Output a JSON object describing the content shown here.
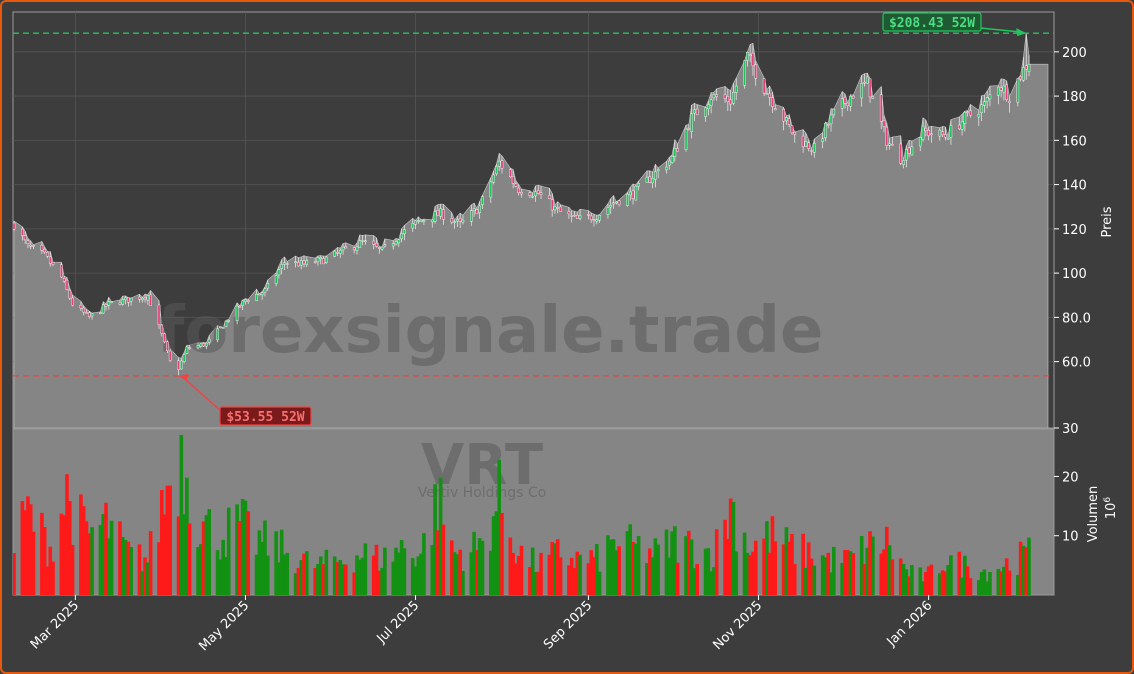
{
  "chart_data": {
    "type": "candlestick",
    "ticker": "VRT",
    "company": "Vertiv Holdings Co",
    "watermark": "forexsignale.trade",
    "ylabel_price": "Preis",
    "ylabel_volume": "Volumen",
    "volume_unit": "10",
    "volume_unit_exp": "6",
    "price_ylim": [
      30,
      218
    ],
    "price_yticks": [
      30,
      60,
      80,
      100,
      120,
      140,
      160,
      180,
      200
    ],
    "price_ytick_labels": [
      "30",
      "60.0",
      "80.0",
      "100",
      "120",
      "140",
      "160",
      "180",
      "200"
    ],
    "volume_ylim": [
      0,
      28
    ],
    "volume_yticks": [
      10,
      20
    ],
    "volume_ytick_labels": [
      "10",
      "20"
    ],
    "date_range": [
      "2025-02-07",
      "2026-02-06"
    ],
    "xtick_dates": [
      "2025-03-01",
      "2025-05-01",
      "2025-07-01",
      "2025-09-01",
      "2025-11-01",
      "2026-01-01"
    ],
    "xtick_labels": [
      "Mar 2025",
      "May 2025",
      "Jul 2025",
      "Sep 2025",
      "Nov 2025",
      "Jan 2026"
    ],
    "high_52w": {
      "value": 208.43,
      "label": "$208.43 52W",
      "date": "2026-02-05"
    },
    "low_52w": {
      "value": 53.55,
      "label": "$53.55 52W",
      "date": "2025-04-07"
    },
    "close_anchors": [
      [
        "2025-02-07",
        122
      ],
      [
        "2025-02-12",
        112
      ],
      [
        "2025-02-18",
        108
      ],
      [
        "2025-02-24",
        98
      ],
      [
        "2025-02-28",
        86
      ],
      [
        "2025-03-06",
        80
      ],
      [
        "2025-03-13",
        86
      ],
      [
        "2025-03-20",
        88
      ],
      [
        "2025-03-27",
        90
      ],
      [
        "2025-04-01",
        72
      ],
      [
        "2025-04-04",
        60
      ],
      [
        "2025-04-07",
        57
      ],
      [
        "2025-04-10",
        66
      ],
      [
        "2025-04-17",
        68
      ],
      [
        "2025-04-24",
        78
      ],
      [
        "2025-05-01",
        88
      ],
      [
        "2025-05-08",
        92
      ],
      [
        "2025-05-15",
        105
      ],
      [
        "2025-05-22",
        104
      ],
      [
        "2025-05-29",
        106
      ],
      [
        "2025-06-05",
        110
      ],
      [
        "2025-06-12",
        114
      ],
      [
        "2025-06-19",
        110
      ],
      [
        "2025-06-26",
        118
      ],
      [
        "2025-07-03",
        124
      ],
      [
        "2025-07-10",
        127
      ],
      [
        "2025-07-17",
        122
      ],
      [
        "2025-07-24",
        130
      ],
      [
        "2025-07-31",
        150
      ],
      [
        "2025-08-07",
        138
      ],
      [
        "2025-08-14",
        136
      ],
      [
        "2025-08-21",
        128
      ],
      [
        "2025-08-28",
        124
      ],
      [
        "2025-09-04",
        126
      ],
      [
        "2025-09-10",
        132
      ],
      [
        "2025-09-17",
        136
      ],
      [
        "2025-09-24",
        144
      ],
      [
        "2025-10-01",
        152
      ],
      [
        "2025-10-08",
        170
      ],
      [
        "2025-10-15",
        180
      ],
      [
        "2025-10-22",
        178
      ],
      [
        "2025-10-28",
        198
      ],
      [
        "2025-11-03",
        184
      ],
      [
        "2025-11-07",
        176
      ],
      [
        "2025-11-14",
        162
      ],
      [
        "2025-11-21",
        156
      ],
      [
        "2025-11-28",
        172
      ],
      [
        "2025-12-04",
        180
      ],
      [
        "2025-12-10",
        186
      ],
      [
        "2025-12-17",
        160
      ],
      [
        "2025-12-22",
        152
      ],
      [
        "2025-12-30",
        164
      ],
      [
        "2026-01-07",
        162
      ],
      [
        "2026-01-14",
        170
      ],
      [
        "2026-01-21",
        176
      ],
      [
        "2026-01-26",
        186
      ],
      [
        "2026-01-30",
        180
      ],
      [
        "2026-02-04",
        192
      ],
      [
        "2026-02-06",
        196
      ]
    ],
    "volume_anchors": [
      [
        "2025-02-07",
        8
      ],
      [
        "2025-02-12",
        14
      ],
      [
        "2025-02-20",
        8
      ],
      [
        "2025-02-26",
        17
      ],
      [
        "2025-03-05",
        10
      ],
      [
        "2025-03-12",
        12
      ],
      [
        "2025-03-20",
        7
      ],
      [
        "2025-03-27",
        6
      ],
      [
        "2025-04-03",
        18
      ],
      [
        "2025-04-08",
        24
      ],
      [
        "2025-04-15",
        12
      ],
      [
        "2025-04-22",
        10
      ],
      [
        "2025-04-29",
        12
      ],
      [
        "2025-05-06",
        9
      ],
      [
        "2025-05-13",
        8
      ],
      [
        "2025-05-20",
        6
      ],
      [
        "2025-05-27",
        5
      ],
      [
        "2025-06-05",
        6
      ],
      [
        "2025-06-12",
        7
      ],
      [
        "2025-06-19",
        6
      ],
      [
        "2025-06-26",
        8
      ],
      [
        "2025-07-03",
        7
      ],
      [
        "2025-07-09",
        16
      ],
      [
        "2025-07-15",
        7
      ],
      [
        "2025-07-24",
        8
      ],
      [
        "2025-07-31",
        16
      ],
      [
        "2025-08-07",
        7
      ],
      [
        "2025-08-14",
        5
      ],
      [
        "2025-08-21",
        7
      ],
      [
        "2025-08-28",
        6
      ],
      [
        "2025-09-04",
        6
      ],
      [
        "2025-09-11",
        9
      ],
      [
        "2025-09-18",
        8
      ],
      [
        "2025-09-25",
        7
      ],
      [
        "2025-10-02",
        9
      ],
      [
        "2025-10-09",
        8
      ],
      [
        "2025-10-16",
        7
      ],
      [
        "2025-10-22",
        15
      ],
      [
        "2025-10-29",
        8
      ],
      [
        "2025-11-05",
        10
      ],
      [
        "2025-11-12",
        8
      ],
      [
        "2025-11-19",
        7
      ],
      [
        "2025-11-26",
        6
      ],
      [
        "2025-12-03",
        6
      ],
      [
        "2025-12-10",
        8
      ],
      [
        "2025-12-17",
        9
      ],
      [
        "2025-12-24",
        4
      ],
      [
        "2025-12-31",
        3
      ],
      [
        "2026-01-07",
        6
      ],
      [
        "2026-01-14",
        5
      ],
      [
        "2026-01-21",
        4
      ],
      [
        "2026-01-28",
        5
      ],
      [
        "2026-02-06",
        7
      ]
    ],
    "colors": {
      "up": "#21c05a",
      "down": "#e0407a",
      "vol_up": "#129112",
      "vol_down": "#ff1a1a",
      "area": "#858585",
      "high_line": "#22c55e",
      "low_line": "#ef4444",
      "high_box_bg": "#1e5a32",
      "low_box_bg": "#7a1a1a"
    }
  }
}
